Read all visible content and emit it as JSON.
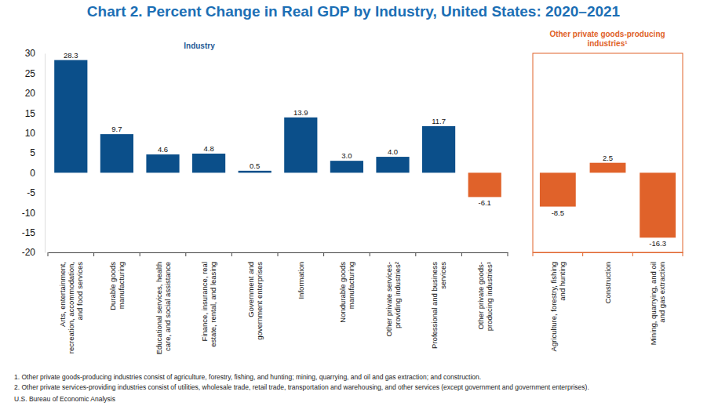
{
  "title": "Chart 2. Percent Change in Real GDP by Industry, United States: 2020–2021",
  "notes": [
    "1. Other private goods-producing industries consist of agriculture, forestry, fishing, and hunting; mining, quarrying, and oil and gas extraction; and construction.",
    "2. Other private services-providing industries consist of utilities, wholesale trade, retail trade, transportation and warehousing, and other services (except government and government enterprises)."
  ],
  "source": "U.S. Bureau of Economic Analysis",
  "chart_data": [
    {
      "type": "bar",
      "title": "Industry",
      "categories": [
        "Arts, entertainment, recreation, accommodation, and food services",
        "Durable goods manufacturing",
        "Educational services, health care, and social assistance",
        "Finance, insurance, real estate, rental, and leasing",
        "Government and government enterprises",
        "Information",
        "Nondurable goods manufacturing",
        "Other private services-providing industries²",
        "Professional and business services",
        "Other private goods-producing industries¹"
      ],
      "values": [
        28.3,
        9.7,
        4.6,
        4.8,
        0.5,
        13.9,
        3.0,
        4.0,
        11.7,
        -6.1
      ],
      "value_labels": [
        "28.3",
        "9.7",
        "4.6",
        "4.8",
        "0.5",
        "13.9",
        "3.0",
        "4.0",
        "11.7",
        "-6.1"
      ],
      "colors": [
        "#0b4f8a",
        "#0b4f8a",
        "#0b4f8a",
        "#0b4f8a",
        "#0b4f8a",
        "#0b4f8a",
        "#0b4f8a",
        "#0b4f8a",
        "#0b4f8a",
        "#e0622a"
      ],
      "ylim": [
        -20,
        30
      ],
      "yticks": [
        -20,
        -15,
        -10,
        -5,
        0,
        5,
        10,
        15,
        20,
        25,
        30
      ],
      "data_labels": true
    },
    {
      "type": "bar",
      "title": "Other private goods-producing industries¹",
      "categories": [
        "Agriculture, forestry, fishing and hunting",
        "Construction",
        "Mining, quarrying, and oil and gas extraction"
      ],
      "values": [
        -8.5,
        2.5,
        -16.3
      ],
      "color": "#e0622a",
      "ylim": [
        -20,
        30
      ],
      "data_labels": true,
      "tick_labels": "x"
    }
  ]
}
